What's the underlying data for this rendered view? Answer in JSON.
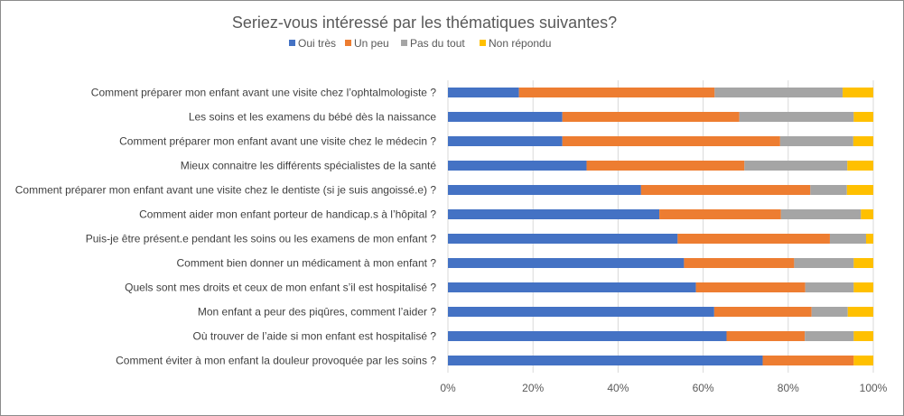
{
  "chart_data": {
    "type": "bar",
    "orientation": "horizontal",
    "stacked": "percent",
    "title": "Seriez-vous intéressé par les thématiques suivantes?",
    "legend_position": "top",
    "grid": true,
    "xlim": [
      0,
      100
    ],
    "x_ticks": [
      "0%",
      "20%",
      "40%",
      "60%",
      "80%",
      "100%"
    ],
    "categories": [
      "Comment préparer mon enfant avant une visite chez l’ophtalmologiste ?",
      "Les soins et les examens du bébé dès la naissance",
      "Comment préparer mon enfant avant une visite chez le médecin ?",
      "Mieux connaitre les différents spécialistes de la santé",
      "Comment préparer mon enfant avant une visite chez le dentiste (si je suis angoissé.e) ?",
      "Comment aider mon enfant porteur de handicap.s à l’hôpital ?",
      "Puis-je être présent.e pendant les soins ou les examens de mon enfant ?",
      "Comment bien donner un médicament à mon enfant ?",
      "Quels sont mes droits et ceux de mon enfant s’il est hospitalisé ?",
      "Mon enfant a peur des piqûres, comment l’aider ?",
      "Où trouver de l’aide si mon enfant est hospitalisé ?",
      "Comment éviter à mon enfant la douleur provoquée par les soins ?"
    ],
    "series": [
      {
        "name": "Oui très",
        "color": "#4472c4",
        "values": [
          16.7,
          26.9,
          26.9,
          32.6,
          45.4,
          49.7,
          54.0,
          55.5,
          58.3,
          62.6,
          65.5,
          74.0
        ]
      },
      {
        "name": "Un peu",
        "color": "#ed7d31",
        "values": [
          46.0,
          41.6,
          51.2,
          37.1,
          39.8,
          28.6,
          35.8,
          25.9,
          25.7,
          22.9,
          18.4,
          21.4
        ]
      },
      {
        "name": "Pas du tout",
        "color": "#a5a5a5",
        "values": [
          30.1,
          26.9,
          17.2,
          24.2,
          8.6,
          18.8,
          8.5,
          14.0,
          11.4,
          8.5,
          11.5,
          0
        ]
      },
      {
        "name": "Non répondu",
        "color": "#ffc000",
        "values": [
          7.2,
          4.6,
          4.7,
          6.1,
          6.2,
          2.9,
          1.7,
          4.6,
          4.6,
          6.0,
          4.6,
          4.6
        ]
      }
    ]
  }
}
